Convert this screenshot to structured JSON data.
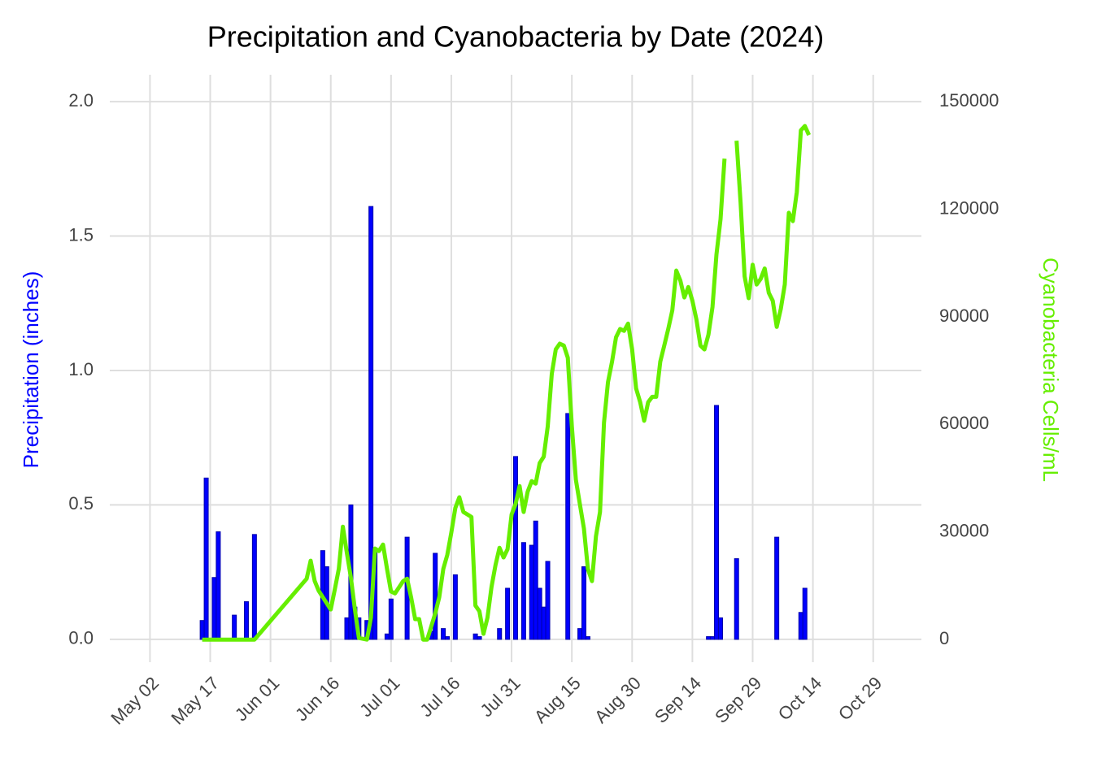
{
  "chart_data": {
    "type": "bar",
    "title": "Precipitation and Cyanobacteria by Date (2024)",
    "ylabel": "Precipitation (inches)",
    "ylabel_color": "#0000ff",
    "y2label": "Cyanobacteria Cells/mL",
    "y2label_color": "#66ee00",
    "grid": true,
    "xlim": [
      "Apr 22",
      "Nov 10"
    ],
    "xticks": [
      "May 02",
      "May 17",
      "Jun 01",
      "Jun 16",
      "Jul 01",
      "Jul 16",
      "Jul 31",
      "Aug 15",
      "Aug 30",
      "Sep 14",
      "Sep 29",
      "Oct 14",
      "Oct 29"
    ],
    "ylim": [
      -0.085,
      2.1
    ],
    "yticks": [
      {
        "value": 0,
        "label": "0.0"
      },
      0.5,
      {
        "value": 1,
        "label": "1.0"
      },
      1.5,
      {
        "value": 2,
        "label": "2.0"
      }
    ],
    "y2lim": [
      -6300,
      157500
    ],
    "y2ticks": [
      0,
      30000,
      60000,
      90000,
      120000,
      150000
    ],
    "series": [
      {
        "type": "bar",
        "color": "#0000ff",
        "x": [
          "May 15",
          "May 16",
          "May 18",
          "May 19",
          "May 23",
          "May 26",
          "May 28",
          "Jun 14",
          "Jun 15",
          "Jun 20",
          "Jun 21",
          "Jun 22",
          "Jun 23",
          "Jun 25",
          "Jun 26",
          "Jun 27",
          "Jun 30",
          "Jul 01",
          "Jul 05",
          "Jul 11",
          "Jul 12",
          "Jul 14",
          "Jul 15",
          "Jul 17",
          "Jul 22",
          "Jul 23",
          "Jul 28",
          "Jul 30",
          "Aug 01",
          "Aug 03",
          "Aug 05",
          "Aug 06",
          "Aug 07",
          "Aug 08",
          "Aug 09",
          "Aug 14",
          "Aug 17",
          "Aug 18",
          "Aug 19",
          "Sep 18",
          "Sep 19",
          "Sep 20",
          "Sep 21",
          "Sep 25",
          "Oct 05",
          "Oct 11",
          "Oct 12"
        ],
        "values": [
          0.07,
          0.6,
          0.23,
          0.4,
          0.09,
          0.14,
          0.39,
          0.33,
          0.27,
          0.08,
          0.5,
          0.12,
          0.08,
          0.07,
          1.61,
          0.33,
          0.02,
          0.15,
          0.38,
          0.03,
          0.32,
          0.04,
          0.01,
          0.24,
          0.02,
          0.01,
          0.04,
          0.19,
          0.68,
          0.36,
          0.35,
          0.44,
          0.19,
          0.12,
          0.29,
          0.84,
          0.04,
          0.27,
          0.01,
          0.01,
          0.01,
          0.87,
          0.08,
          0.3,
          0.38,
          0.1,
          0.19
        ]
      },
      {
        "type": "line",
        "axis": "y2",
        "color": "#66ee00",
        "x": [
          "May 15",
          "May 28",
          "Jun 10",
          "Jun 11",
          "Jun 12",
          "Jun 13",
          "Jun 16",
          "Jun 17",
          "Jun 18",
          "Jun 19",
          "Jun 20",
          "Jun 21",
          "Jun 22",
          "Jun 23",
          "Jun 25",
          "Jun 26",
          "Jun 27",
          "Jun 28",
          "Jun 29",
          "Jun 30",
          "Jul 01",
          "Jul 02",
          "Jul 04",
          "Jul 05",
          "Jul 06",
          "Jul 07",
          "Jul 08",
          "Jul 09",
          "Jul 10",
          "Jul 12",
          "Jul 13",
          "Jul 14",
          "Jul 15",
          "Jul 16",
          "Jul 17",
          "Jul 18",
          "Jul 19",
          "Jul 21",
          "Jul 22",
          "Jul 23",
          "Jul 24",
          "Jul 25",
          "Jul 26",
          "Jul 27",
          "Jul 28",
          "Jul 29",
          "Jul 30",
          "Jul 31",
          "Aug 01",
          "Aug 02",
          "Aug 03",
          "Aug 04",
          "Aug 05",
          "Aug 06",
          "Aug 07",
          "Aug 08",
          "Aug 09",
          "Aug 10",
          "Aug 11",
          "Aug 12",
          "Aug 13",
          "Aug 14",
          "Aug 15",
          "Aug 16",
          "Aug 17",
          "Aug 18",
          "Aug 19",
          "Aug 20",
          "Aug 21",
          "Aug 22",
          "Aug 23",
          "Aug 24",
          "Aug 25",
          "Aug 26",
          "Aug 27",
          "Aug 28",
          "Aug 29",
          "Aug 30",
          "Aug 31",
          "Sep 01",
          "Sep 02",
          "Sep 03",
          "Sep 04",
          "Sep 05",
          "Sep 06",
          "Sep 07",
          "Sep 08",
          "Sep 09",
          "Sep 10",
          "Sep 11",
          "Sep 12",
          "Sep 13",
          "Sep 14",
          "Sep 15",
          "Sep 16",
          "Sep 17",
          "Sep 18",
          "Sep 19",
          "Sep 20",
          "Sep 21",
          "Sep 22",
          "Sep 24",
          "Sep 25",
          "Sep 26",
          "Sep 27",
          "Sep 28",
          "Sep 29",
          "Sep 30",
          "Oct 01",
          "Oct 02",
          "Oct 03",
          "Oct 04",
          "Oct 05",
          "Oct 06",
          "Oct 07",
          "Oct 08",
          "Oct 09",
          "Oct 10",
          "Oct 11",
          "Oct 12",
          "Oct 13"
        ],
        "values": [
          0,
          0,
          17000,
          22000,
          16300,
          13600,
          8400,
          14000,
          19700,
          31500,
          24200,
          17400,
          8400,
          450,
          0,
          6100,
          25400,
          24700,
          26500,
          19700,
          13400,
          12900,
          16300,
          17000,
          11800,
          5700,
          5700,
          0,
          0,
          7300,
          11800,
          19700,
          23600,
          29900,
          36700,
          39700,
          35600,
          34200,
          9500,
          7900,
          1600,
          6100,
          14700,
          20800,
          25600,
          22900,
          25200,
          34900,
          37800,
          42800,
          35600,
          41200,
          44200,
          43500,
          49200,
          51000,
          59400,
          74100,
          80900,
          82500,
          82000,
          78600,
          59400,
          44600,
          37800,
          31000,
          19700,
          16300,
          28800,
          35600,
          60500,
          71800,
          77500,
          84300,
          86600,
          86100,
          88100,
          80900,
          70000,
          66200,
          61000,
          66200,
          67700,
          67700,
          77500,
          82000,
          86600,
          91800,
          102900,
          100100,
          95400,
          98300,
          94500,
          89300,
          82000,
          80900,
          85000,
          92700,
          107400,
          117200,
          134100,
          null,
          139100,
          121700,
          101300,
          95200,
          104500,
          99000,
          100600,
          103500,
          96700,
          94500,
          87200,
          92200,
          99000,
          119000,
          116700,
          124800,
          142000,
          143200,
          140700
        ]
      }
    ]
  }
}
